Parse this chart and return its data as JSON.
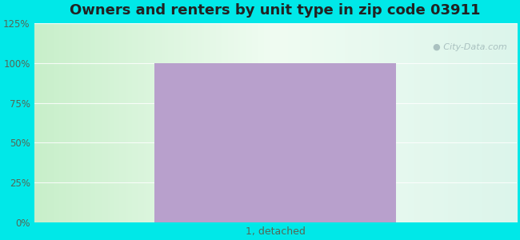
{
  "title": "Owners and renters by unit type in zip code 03911",
  "title_fontsize": 13,
  "categories": [
    "1, detached"
  ],
  "values": [
    100
  ],
  "bar_color": "#b8a0cc",
  "bar_width": 0.5,
  "ylim": [
    0,
    125
  ],
  "yticks": [
    0,
    25,
    50,
    75,
    100,
    125
  ],
  "ytick_labels": [
    "0%",
    "25%",
    "50%",
    "75%",
    "100%",
    "125%"
  ],
  "outer_bg_color": "#00e8e8",
  "bg_colors": [
    "#c8efca",
    "#e8f8ec",
    "#f0faf2",
    "#f5faf5",
    "#eef8f2"
  ],
  "watermark": "City-Data.com",
  "watermark_color": "#a0b8b8",
  "grid_color": "#d8ece0",
  "tick_color": "#556655",
  "title_color": "#222222"
}
